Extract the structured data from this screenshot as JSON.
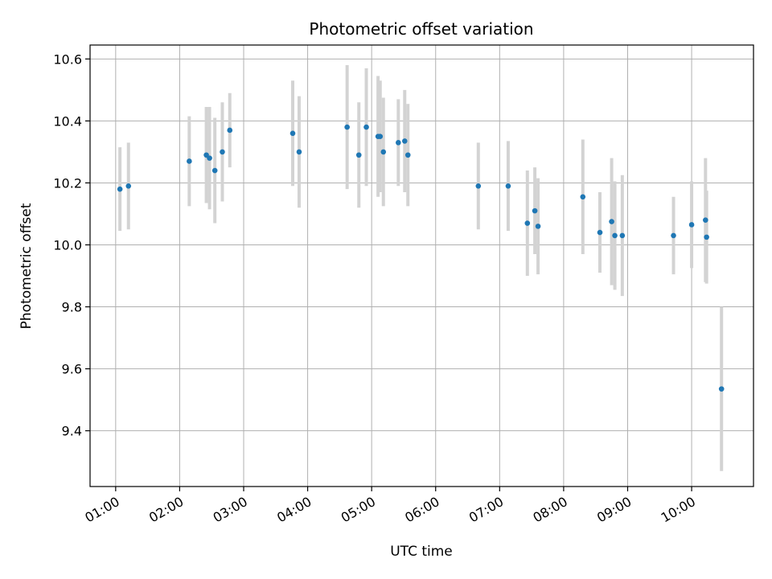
{
  "chart_data": {
    "type": "scatter",
    "title": "Photometric offset variation",
    "xlabel": "UTC time",
    "ylabel": "Photometric offset",
    "xlim": [
      "00:36",
      "10:58"
    ],
    "ylim": [
      9.22,
      10.645
    ],
    "grid": true,
    "x_ticks": [
      "01:00",
      "02:00",
      "03:00",
      "04:00",
      "05:00",
      "06:00",
      "07:00",
      "08:00",
      "09:00",
      "10:00"
    ],
    "y_ticks": [
      9.4,
      9.6,
      9.8,
      10.0,
      10.2,
      10.4,
      10.6
    ],
    "y_tick_labels": [
      "9.4",
      "9.6",
      "9.8",
      "10.0",
      "10.2",
      "10.4",
      "10.6"
    ],
    "colors": {
      "point": "#1f77b4",
      "errorbar": "#d3d3d3",
      "grid": "#b0b0b0"
    },
    "points": [
      {
        "x": "01:04",
        "y": 10.18,
        "err": 0.135
      },
      {
        "x": "01:12",
        "y": 10.19,
        "err": 0.14
      },
      {
        "x": "02:09",
        "y": 10.27,
        "err": 0.145
      },
      {
        "x": "02:25",
        "y": 10.29,
        "err": 0.155
      },
      {
        "x": "02:28",
        "y": 10.28,
        "err": 0.165
      },
      {
        "x": "02:33",
        "y": 10.24,
        "err": 0.17
      },
      {
        "x": "02:40",
        "y": 10.3,
        "err": 0.16
      },
      {
        "x": "02:47",
        "y": 10.37,
        "err": 0.12
      },
      {
        "x": "03:46",
        "y": 10.36,
        "err": 0.17
      },
      {
        "x": "03:52",
        "y": 10.3,
        "err": 0.18
      },
      {
        "x": "04:37",
        "y": 10.38,
        "err": 0.2
      },
      {
        "x": "04:48",
        "y": 10.29,
        "err": 0.17
      },
      {
        "x": "04:55",
        "y": 10.38,
        "err": 0.19
      },
      {
        "x": "05:06",
        "y": 10.35,
        "err": 0.195
      },
      {
        "x": "05:08",
        "y": 10.35,
        "err": 0.18
      },
      {
        "x": "05:11",
        "y": 10.3,
        "err": 0.175
      },
      {
        "x": "05:25",
        "y": 10.33,
        "err": 0.14
      },
      {
        "x": "05:31",
        "y": 10.335,
        "err": 0.165
      },
      {
        "x": "05:34",
        "y": 10.29,
        "err": 0.165
      },
      {
        "x": "06:40",
        "y": 10.19,
        "err": 0.14
      },
      {
        "x": "07:08",
        "y": 10.19,
        "err": 0.145
      },
      {
        "x": "07:26",
        "y": 10.07,
        "err": 0.17
      },
      {
        "x": "07:33",
        "y": 10.11,
        "err": 0.14
      },
      {
        "x": "07:36",
        "y": 10.06,
        "err": 0.155
      },
      {
        "x": "08:18",
        "y": 10.155,
        "err": 0.185
      },
      {
        "x": "08:34",
        "y": 10.04,
        "err": 0.13
      },
      {
        "x": "08:45",
        "y": 10.075,
        "err": 0.205
      },
      {
        "x": "08:48",
        "y": 10.03,
        "err": 0.175
      },
      {
        "x": "08:55",
        "y": 10.03,
        "err": 0.195
      },
      {
        "x": "09:43",
        "y": 10.03,
        "err": 0.125
      },
      {
        "x": "10:00",
        "y": 10.065,
        "err": 0.14
      },
      {
        "x": "10:13",
        "y": 10.08,
        "err": 0.2
      },
      {
        "x": "10:14",
        "y": 10.025,
        "err": 0.15
      },
      {
        "x": "10:28",
        "y": 9.535,
        "err": 0.265
      }
    ]
  }
}
